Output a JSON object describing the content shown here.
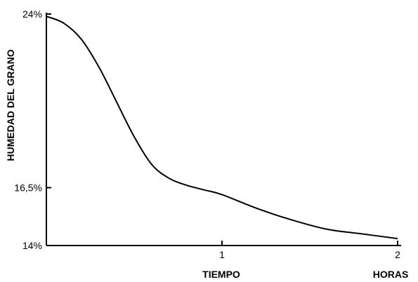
{
  "chart_data": {
    "type": "line",
    "title": "",
    "ylabel": "HUMEDAD DEL GRANO",
    "xlabel": "TIEMPO",
    "xunit": "HORAS",
    "xlim": [
      0,
      2
    ],
    "ylim": [
      14,
      24
    ],
    "x_ticks": [
      {
        "value": 1,
        "label": "1"
      },
      {
        "value": 2,
        "label": "2"
      }
    ],
    "y_ticks": [
      {
        "value": 24,
        "label": "24%"
      },
      {
        "value": 16.5,
        "label": "16,5%"
      },
      {
        "value": 14,
        "label": "14%"
      }
    ],
    "grid": false,
    "series": [
      {
        "x": [
          0.0,
          0.1,
          0.2,
          0.3,
          0.4,
          0.5,
          0.6,
          0.7,
          0.8,
          0.9,
          1.0,
          1.2,
          1.4,
          1.6,
          1.8,
          2.0
        ],
        "values": [
          23.9,
          23.6,
          22.9,
          21.7,
          20.2,
          18.7,
          17.5,
          16.9,
          16.6,
          16.4,
          16.2,
          15.6,
          15.1,
          14.7,
          14.5,
          14.3
        ]
      }
    ]
  }
}
